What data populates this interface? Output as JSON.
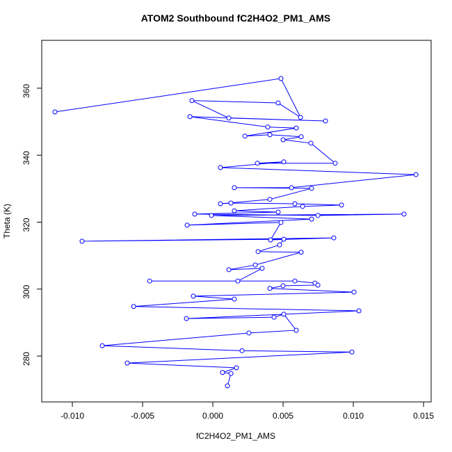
{
  "chart_data": {
    "type": "line",
    "title": "ATOM2 Southbound fC2H4O2_PM1_AMS",
    "x_label": "fC2H4O2_PM1_AMS",
    "y_label": "Theta (K)",
    "x": [
      -0.01124,
      0.00485,
      0.00624,
      0.00465,
      -0.00149,
      0.00114,
      0.00802,
      -0.00163,
      0.00391,
      0.00594,
      0.00228,
      0.00406,
      0.00629,
      0.005,
      0.00698,
      0.00871,
      0.00317,
      0.00505,
      0.00054,
      0.01446,
      0.0056,
      0.00153,
      0.00703,
      0.00406,
      0.00054,
      0.00129,
      0.00584,
      0.00916,
      0.00639,
      0.00153,
      0.00465,
      -0.00129,
      0.00748,
      0.01361,
      -0.0001,
      0.00703,
      -0.00183,
      0.00485,
      0.00411,
      0.00861,
      -0.00931,
      0.00505,
      0.00475,
      0.00322,
      0.00629,
      0.00302,
      0.00114,
      0.00351,
      0.00178,
      -0.0045,
      0.00584,
      0.00727,
      0.00748,
      0.005,
      0.00406,
      0.01005,
      -0.00139,
      0.00153,
      -0.00564,
      0.0104,
      -0.00188,
      0.00436,
      0.00505,
      0.00594,
      0.00257,
      -0.00787,
      0.00208,
      0.0099,
      -0.00609,
      0.00168,
      0.00069,
      0.00129,
      0.00104
    ],
    "values": [
      352.9,
      362.9,
      351.3,
      355.6,
      356.3,
      351.1,
      350.2,
      351.5,
      348.4,
      348.1,
      345.7,
      346.1,
      345.5,
      344.6,
      343.6,
      337.6,
      337.6,
      338.0,
      336.3,
      334.2,
      330.3,
      330.3,
      330.1,
      326.8,
      325.5,
      325.7,
      325.5,
      325.1,
      324.7,
      323.4,
      323.0,
      322.4,
      322.0,
      322.4,
      322.0,
      320.9,
      319.1,
      319.9,
      314.7,
      315.3,
      314.3,
      314.9,
      313.2,
      311.2,
      311.0,
      307.2,
      305.8,
      306.2,
      302.4,
      302.4,
      302.4,
      301.8,
      301.2,
      301.0,
      300.2,
      299.1,
      297.9,
      297.0,
      294.8,
      293.5,
      291.2,
      291.6,
      292.5,
      287.7,
      286.9,
      283.1,
      281.6,
      281.2,
      277.9,
      276.5,
      275.1,
      274.8,
      271.1
    ],
    "color": "#0000ff",
    "xlim": [
      -0.01218,
      0.01554
    ],
    "ylim": [
      266.3,
      374.3
    ],
    "xticks": [
      {
        "value": -0.01,
        "label": "-0.010"
      },
      {
        "value": -0.005,
        "label": "-0.005"
      },
      {
        "value": 0,
        "label": "0.000"
      },
      {
        "value": 0.005,
        "label": "0.005"
      },
      {
        "value": 0.01,
        "label": "0.010"
      },
      {
        "value": 0.015,
        "label": "0.015"
      }
    ],
    "yticks": [
      280,
      300,
      320,
      340,
      360
    ]
  }
}
